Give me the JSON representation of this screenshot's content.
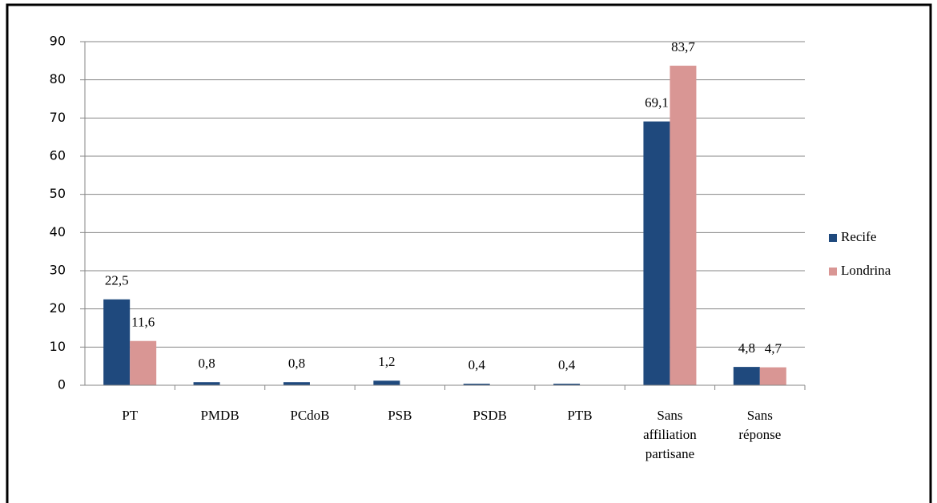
{
  "chart_data": {
    "type": "bar",
    "categories": [
      "PT",
      "PMDB",
      "PCdoB",
      "PSB",
      "PSDB",
      "PTB",
      "Sans affiliation partisane",
      "Sans réponse"
    ],
    "series": [
      {
        "name": "Recife",
        "color": "#1f497d",
        "values": [
          22.5,
          0.8,
          0.8,
          1.2,
          0.4,
          0.4,
          69.1,
          4.8
        ],
        "value_labels": [
          "22,5",
          "0,8",
          "0,8",
          "1,2",
          "0,4",
          "0,4",
          "69,1",
          "4,8"
        ]
      },
      {
        "name": "Londrina",
        "color": "#d99694",
        "values": [
          11.6,
          null,
          null,
          null,
          null,
          null,
          83.7,
          4.7
        ],
        "value_labels": [
          "11,6",
          null,
          null,
          null,
          null,
          null,
          "83,7",
          "4,7"
        ]
      }
    ],
    "ylim": [
      0,
      90
    ],
    "yticks": [
      0,
      10,
      20,
      30,
      40,
      50,
      60,
      70,
      80,
      90
    ],
    "grid": true,
    "legend": "right"
  }
}
